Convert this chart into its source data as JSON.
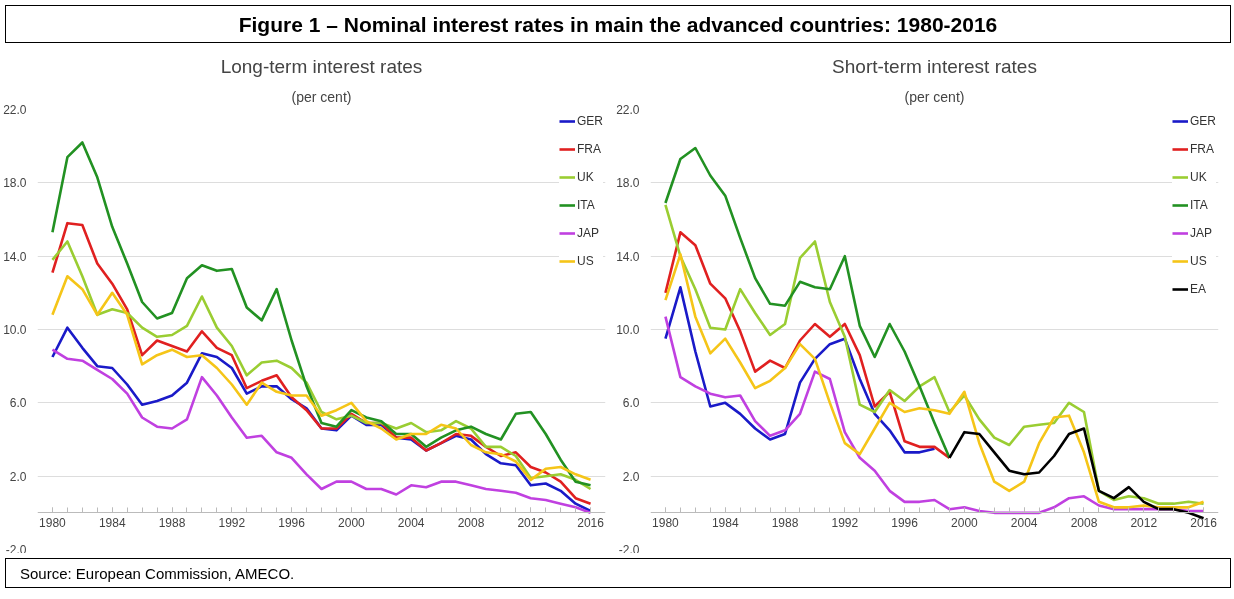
{
  "chart_data": [
    {
      "type": "line",
      "title": "Long-term interest rates",
      "subtitle": "(per cent)",
      "annotations": [
        "Figure 1 – Nominal interest rates in main the advanced countries: 1980-2016",
        "Source: European Commission, AMECO."
      ],
      "x": [
        1980,
        1981,
        1982,
        1983,
        1984,
        1985,
        1986,
        1987,
        1988,
        1989,
        1990,
        1991,
        1992,
        1993,
        1994,
        1995,
        1996,
        1997,
        1998,
        1999,
        2000,
        2001,
        2002,
        2003,
        2004,
        2005,
        2006,
        2007,
        2008,
        2009,
        2010,
        2011,
        2012,
        2013,
        2014,
        2015,
        2016
      ],
      "xlim": [
        1979,
        2017
      ],
      "xticks": [
        1980,
        1984,
        1988,
        1992,
        1996,
        2000,
        2004,
        2008,
        2012,
        2016
      ],
      "ylim": [
        -2,
        22
      ],
      "yticks": [
        {
          "value": -2,
          "label": "-2.0"
        },
        {
          "value": 2,
          "label": "2.0"
        },
        {
          "value": 6,
          "label": "6.0"
        },
        {
          "value": 10,
          "label": "10.0"
        },
        {
          "value": 14,
          "label": "14.0"
        },
        {
          "value": 18,
          "label": "18.0"
        },
        {
          "value": 22,
          "label": "22.0"
        }
      ],
      "grid": "y",
      "legend": "top right",
      "series": [
        {
          "name": "GER",
          "color": "#1a1ac8",
          "values": [
            8.5,
            10.1,
            9.0,
            8.0,
            7.9,
            7.0,
            5.9,
            6.1,
            6.4,
            7.1,
            8.7,
            8.5,
            7.9,
            6.5,
            6.9,
            6.9,
            6.2,
            5.7,
            4.6,
            4.5,
            5.3,
            4.8,
            4.8,
            4.1,
            4.0,
            3.4,
            3.8,
            4.2,
            4.0,
            3.2,
            2.7,
            2.6,
            1.5,
            1.6,
            1.2,
            0.5,
            0.1
          ]
        },
        {
          "name": "FRA",
          "color": "#e02020",
          "values": [
            13.1,
            15.8,
            15.7,
            13.6,
            12.5,
            11.1,
            8.6,
            9.4,
            9.1,
            8.8,
            9.9,
            9.0,
            8.6,
            6.8,
            7.2,
            7.5,
            6.3,
            5.6,
            4.6,
            4.6,
            5.4,
            4.9,
            4.9,
            4.1,
            4.1,
            3.4,
            3.8,
            4.3,
            4.2,
            3.6,
            3.1,
            3.3,
            2.5,
            2.2,
            1.7,
            0.8,
            0.5
          ]
        },
        {
          "name": "UK",
          "color": "#9acd32",
          "values": [
            13.8,
            14.8,
            12.9,
            10.8,
            11.1,
            10.9,
            10.1,
            9.6,
            9.7,
            10.2,
            11.8,
            10.1,
            9.1,
            7.5,
            8.2,
            8.3,
            7.9,
            7.1,
            5.5,
            5.1,
            5.3,
            4.9,
            4.9,
            4.6,
            4.9,
            4.4,
            4.5,
            5.0,
            4.6,
            3.6,
            3.6,
            3.1,
            1.9,
            2.0,
            2.1,
            1.8,
            1.3
          ]
        },
        {
          "name": "ITA",
          "color": "#229122",
          "values": [
            15.3,
            19.4,
            20.2,
            18.3,
            15.6,
            13.6,
            11.5,
            10.6,
            10.9,
            12.8,
            13.5,
            13.2,
            13.3,
            11.2,
            10.5,
            12.2,
            9.4,
            6.9,
            4.9,
            4.7,
            5.6,
            5.2,
            5.0,
            4.3,
            4.3,
            3.6,
            4.1,
            4.5,
            4.7,
            4.3,
            4.0,
            5.4,
            5.5,
            4.3,
            2.9,
            1.7,
            1.5
          ]
        },
        {
          "name": "JAP",
          "color": "#c040e0",
          "values": [
            8.9,
            8.4,
            8.3,
            7.8,
            7.3,
            6.5,
            5.2,
            4.7,
            4.6,
            5.1,
            7.4,
            6.4,
            5.2,
            4.1,
            4.2,
            3.3,
            3.0,
            2.1,
            1.3,
            1.7,
            1.7,
            1.3,
            1.3,
            1.0,
            1.5,
            1.4,
            1.7,
            1.7,
            1.5,
            1.3,
            1.2,
            1.1,
            0.8,
            0.7,
            0.5,
            0.3,
            0.0
          ]
        },
        {
          "name": "US",
          "color": "#f5c518",
          "values": [
            10.8,
            12.9,
            12.2,
            10.8,
            12.0,
            10.8,
            8.1,
            8.6,
            8.9,
            8.5,
            8.6,
            7.9,
            7.0,
            5.9,
            7.1,
            6.6,
            6.4,
            6.4,
            5.3,
            5.6,
            6.0,
            5.0,
            4.6,
            4.0,
            4.3,
            4.3,
            4.8,
            4.6,
            3.7,
            3.3,
            3.2,
            2.8,
            1.8,
            2.4,
            2.5,
            2.1,
            1.8
          ]
        }
      ]
    },
    {
      "type": "line",
      "title": "Short-term interest rates",
      "subtitle": "(per cent)",
      "x": [
        1980,
        1981,
        1982,
        1983,
        1984,
        1985,
        1986,
        1987,
        1988,
        1989,
        1990,
        1991,
        1992,
        1993,
        1994,
        1995,
        1996,
        1997,
        1998,
        1999,
        2000,
        2001,
        2002,
        2003,
        2004,
        2005,
        2006,
        2007,
        2008,
        2009,
        2010,
        2011,
        2012,
        2013,
        2014,
        2015,
        2016
      ],
      "xlim": [
        1979,
        2017
      ],
      "xticks": [
        1980,
        1984,
        1988,
        1992,
        1996,
        2000,
        2004,
        2008,
        2012,
        2016
      ],
      "ylim": [
        -2,
        22
      ],
      "yticks": [
        {
          "value": -2,
          "label": "-2.0"
        },
        {
          "value": 2,
          "label": "2.0"
        },
        {
          "value": 6,
          "label": "6.0"
        },
        {
          "value": 10,
          "label": "10.0"
        },
        {
          "value": 14,
          "label": "14.0"
        },
        {
          "value": 18,
          "label": "18.0"
        },
        {
          "value": 22,
          "label": "22.0"
        }
      ],
      "grid": "y",
      "legend": "top right",
      "series": [
        {
          "name": "GER",
          "color": "#1a1ac8",
          "values": [
            9.5,
            12.3,
            8.8,
            5.8,
            6.0,
            5.4,
            4.6,
            4.0,
            4.3,
            7.1,
            8.4,
            9.2,
            9.5,
            7.3,
            5.4,
            4.5,
            3.3,
            3.3,
            3.5,
            null,
            null,
            null,
            null,
            null,
            null,
            null,
            null,
            null,
            null,
            null,
            null,
            null,
            null,
            null,
            null,
            null,
            null
          ]
        },
        {
          "name": "FRA",
          "color": "#e02020",
          "values": [
            12.0,
            15.3,
            14.6,
            12.5,
            11.7,
            9.9,
            7.7,
            8.3,
            7.9,
            9.4,
            10.3,
            9.6,
            10.3,
            8.6,
            5.8,
            6.6,
            3.9,
            3.6,
            3.6,
            3.0,
            null,
            null,
            null,
            null,
            null,
            null,
            null,
            null,
            null,
            null,
            null,
            null,
            null,
            null,
            null,
            null,
            null
          ]
        },
        {
          "name": "UK",
          "color": "#9acd32",
          "values": [
            16.8,
            14.0,
            12.2,
            10.1,
            10.0,
            12.2,
            10.9,
            9.7,
            10.3,
            13.9,
            14.8,
            11.5,
            9.6,
            5.9,
            5.5,
            6.7,
            6.1,
            6.9,
            7.4,
            5.5,
            6.4,
            5.1,
            4.1,
            3.7,
            4.7,
            4.8,
            4.9,
            6.0,
            5.5,
            1.2,
            0.7,
            0.9,
            0.8,
            0.5,
            0.5,
            0.6,
            0.5
          ]
        },
        {
          "name": "ITA",
          "color": "#229122",
          "values": [
            16.9,
            19.3,
            19.9,
            18.4,
            17.3,
            15.0,
            12.8,
            11.4,
            11.3,
            12.6,
            12.3,
            12.2,
            14.0,
            10.2,
            8.5,
            10.3,
            8.8,
            6.9,
            4.9,
            3.0,
            null,
            null,
            null,
            null,
            null,
            null,
            null,
            null,
            null,
            null,
            null,
            null,
            null,
            null,
            null,
            null,
            null
          ]
        },
        {
          "name": "JAP",
          "color": "#c040e0",
          "values": [
            10.7,
            7.4,
            6.9,
            6.5,
            6.3,
            6.4,
            5.0,
            4.2,
            4.5,
            5.4,
            7.7,
            7.3,
            4.4,
            3.0,
            2.3,
            1.2,
            0.6,
            0.6,
            0.7,
            0.2,
            0.3,
            0.1,
            0.0,
            0.0,
            0.0,
            0.0,
            0.3,
            0.8,
            0.9,
            0.4,
            0.2,
            0.2,
            0.2,
            0.2,
            0.2,
            0.1,
            0.1
          ]
        },
        {
          "name": "US",
          "color": "#f5c518",
          "values": [
            11.6,
            14.1,
            10.7,
            8.7,
            9.5,
            8.2,
            6.8,
            7.2,
            7.9,
            9.2,
            8.4,
            6.0,
            3.8,
            3.2,
            4.6,
            6.0,
            5.5,
            5.7,
            5.6,
            5.4,
            6.6,
            3.8,
            1.7,
            1.2,
            1.7,
            3.8,
            5.2,
            5.3,
            3.3,
            0.6,
            0.3,
            0.3,
            0.4,
            0.3,
            0.3,
            0.3,
            0.6
          ]
        },
        {
          "name": "EA",
          "color": "#000000",
          "values": [
            null,
            null,
            null,
            null,
            null,
            null,
            null,
            null,
            null,
            null,
            null,
            null,
            null,
            null,
            null,
            null,
            null,
            null,
            null,
            3.0,
            4.4,
            4.3,
            3.3,
            2.3,
            2.1,
            2.2,
            3.1,
            4.3,
            4.6,
            1.2,
            0.8,
            1.4,
            0.6,
            0.2,
            0.2,
            0.0,
            -0.3
          ]
        }
      ]
    }
  ]
}
